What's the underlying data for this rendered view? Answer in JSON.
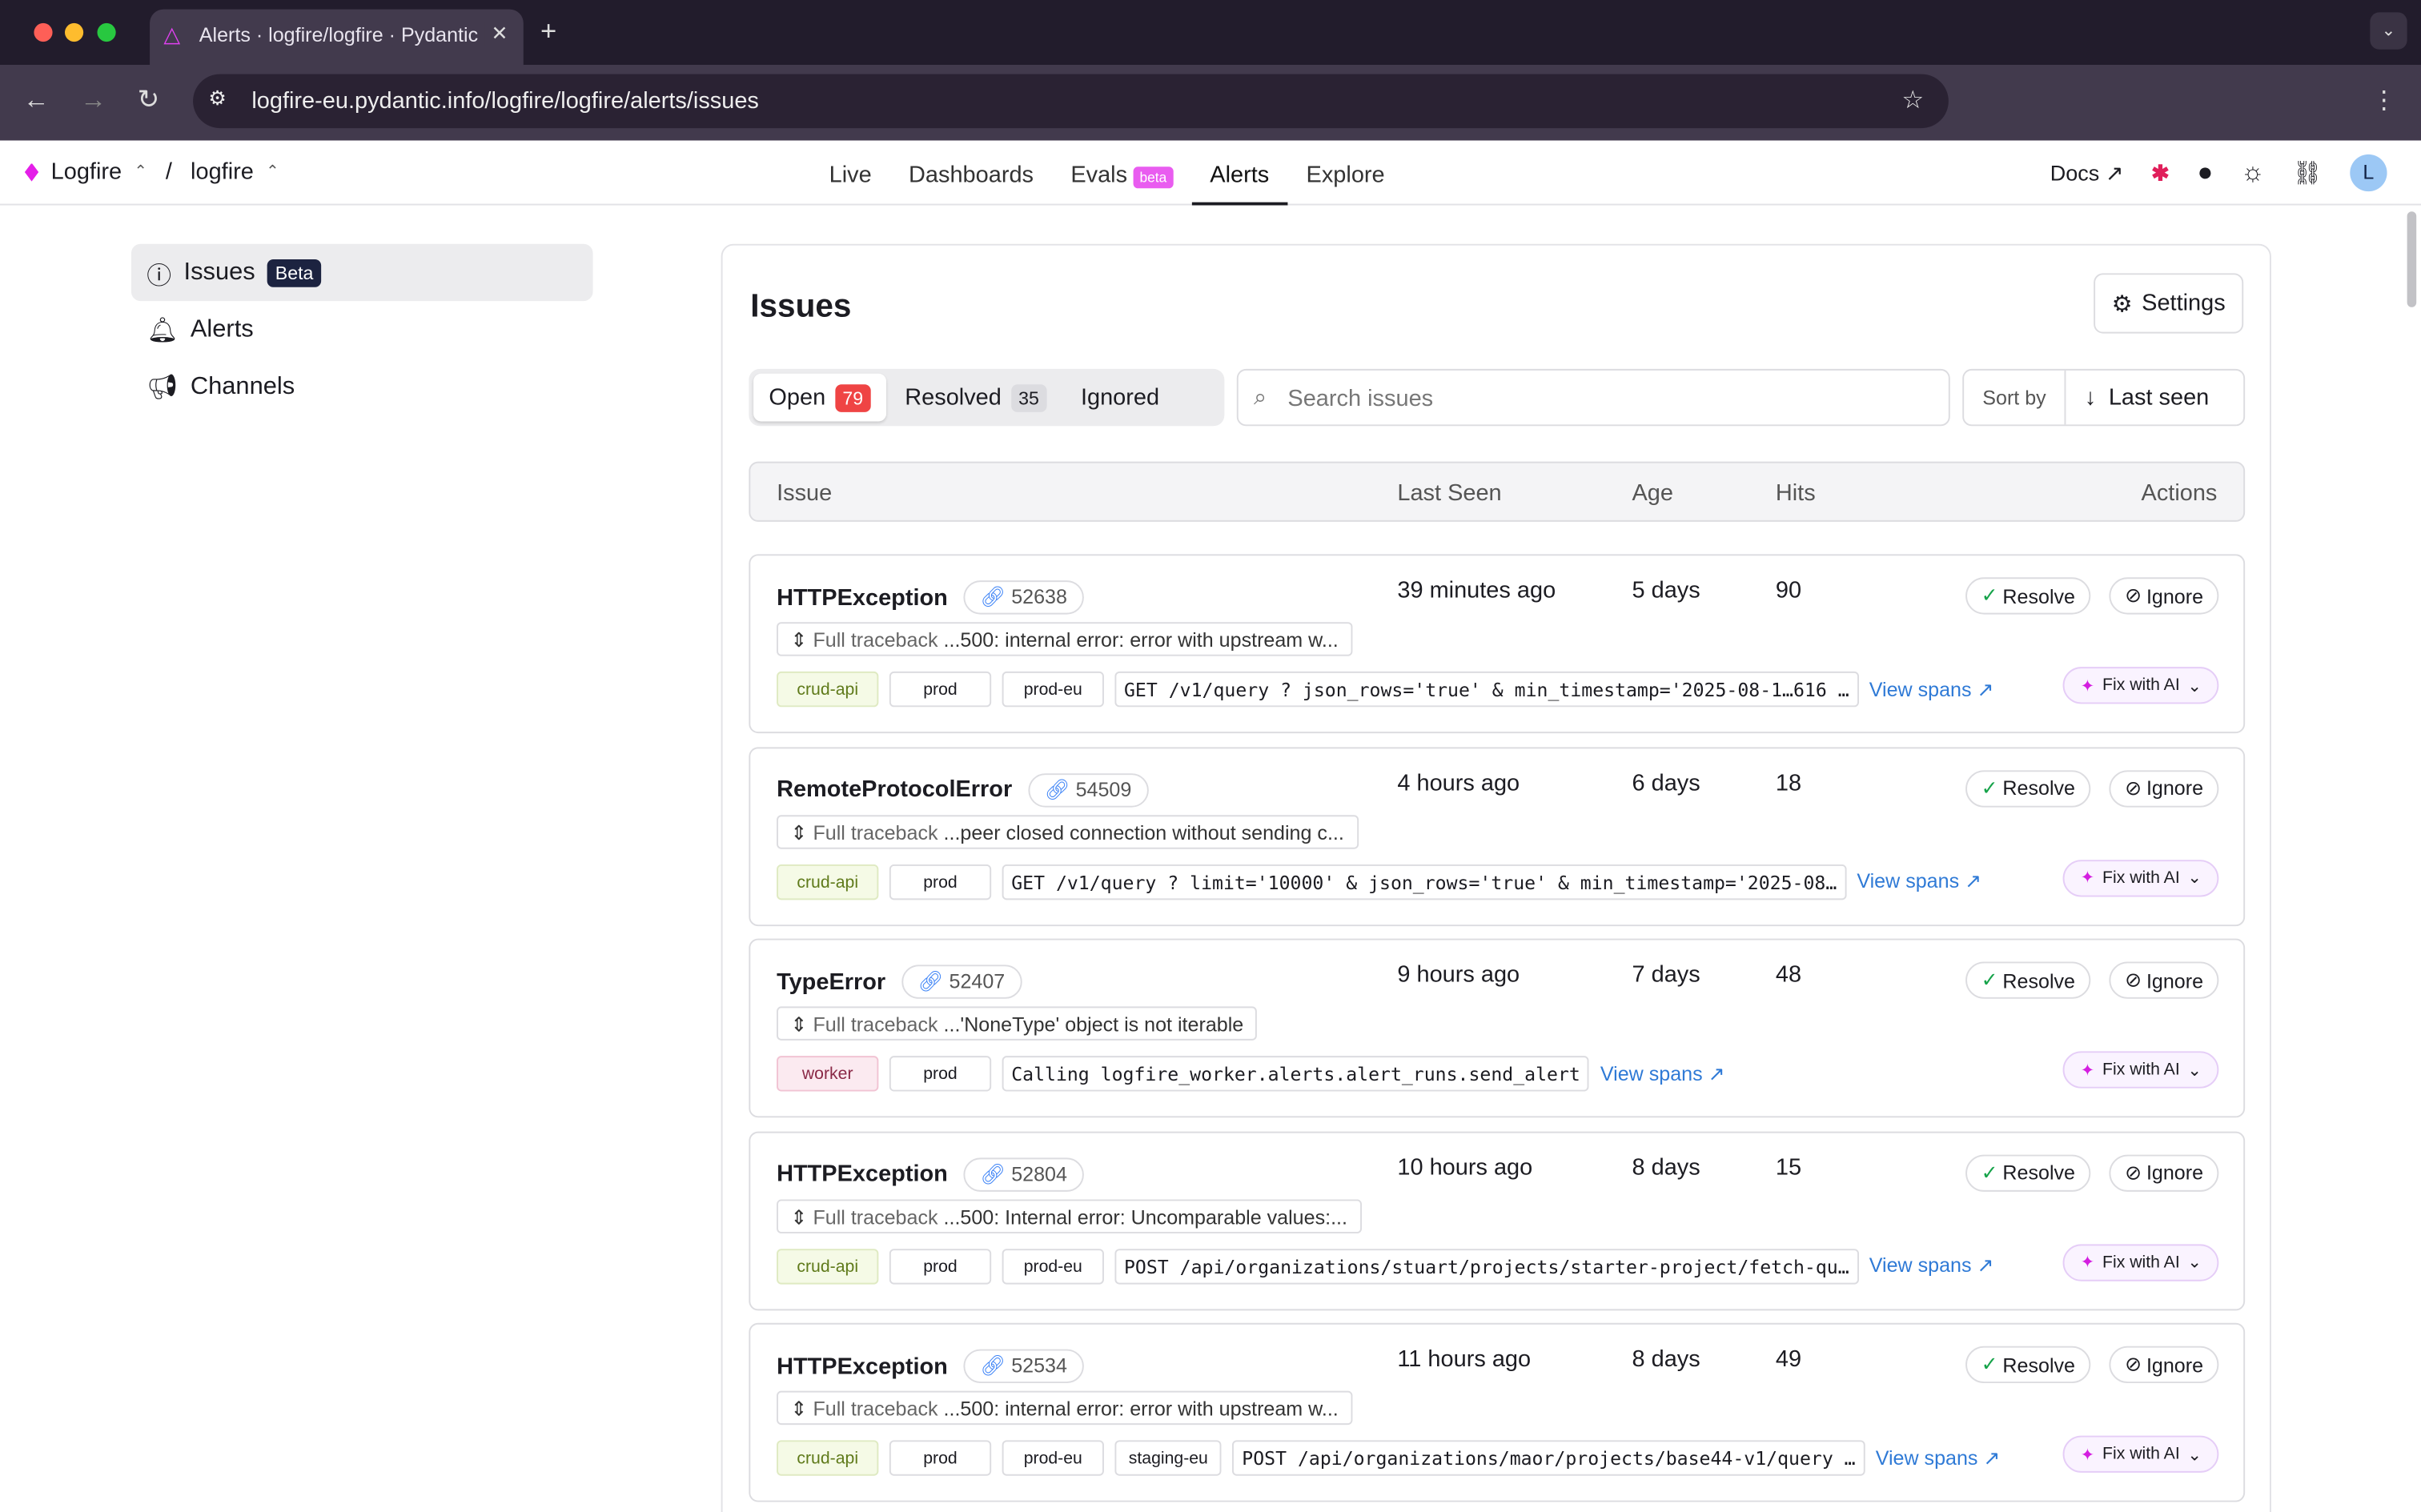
{
  "browser": {
    "tab_title": "Alerts · logfire/logfire · Pydantic",
    "url": "logfire-eu.pydantic.info/logfire/logfire/alerts/issues"
  },
  "appnav": {
    "org": "Logfire",
    "project": "logfire",
    "separator": "/",
    "items": [
      "Live",
      "Dashboards",
      "Evals",
      "Alerts",
      "Explore"
    ],
    "evals_badge": "beta",
    "active": "Alerts",
    "docs": "Docs",
    "avatar": "L"
  },
  "sidebar": {
    "items": [
      {
        "label": "Issues",
        "badge": "Beta"
      },
      {
        "label": "Alerts"
      },
      {
        "label": "Channels"
      }
    ]
  },
  "page": {
    "title": "Issues",
    "settings": "Settings",
    "filters": [
      {
        "label": "Open",
        "count": "79"
      },
      {
        "label": "Resolved",
        "count": "35"
      },
      {
        "label": "Ignored"
      }
    ],
    "search_placeholder": "Search issues",
    "sort_label": "Sort by",
    "sort_value": "Last seen",
    "columns": [
      "Issue",
      "Last Seen",
      "Age",
      "Hits",
      "Actions"
    ]
  },
  "actions": {
    "resolve": "Resolve",
    "ignore": "Ignore",
    "view_spans": "View spans",
    "fix": "Fix with AI",
    "traceback": "Full traceback"
  },
  "issues": [
    {
      "name": "HTTPException",
      "id": "52638",
      "traceback": "...500: internal error: error with upstream w...",
      "tags": [
        "crud-api",
        "prod",
        "prod-eu"
      ],
      "route": "GET /v1/query ? json_rows='true' & min_timestamp='2025-08-1…616 …",
      "last_seen": "39 minutes ago",
      "age": "5 days",
      "hits": "90",
      "resolvable": true
    },
    {
      "name": "RemoteProtocolError",
      "id": "54509",
      "traceback": "...peer closed connection without sending c...",
      "tags": [
        "crud-api",
        "prod"
      ],
      "route": "GET /v1/query ? limit='10000' & json_rows='true' & min_timestamp='2025-08…",
      "last_seen": "4 hours ago",
      "age": "6 days",
      "hits": "18",
      "resolvable": true
    },
    {
      "name": "TypeError",
      "id": "52407",
      "traceback": "...'NoneType' object is not iterable",
      "tags": [
        "worker",
        "prod"
      ],
      "route": "Calling logfire_worker.alerts.alert_runs.send_alert",
      "last_seen": "9 hours ago",
      "age": "7 days",
      "hits": "48",
      "resolvable": true
    },
    {
      "name": "HTTPException",
      "id": "52804",
      "traceback": "...500: Internal error: Uncomparable values:...",
      "tags": [
        "crud-api",
        "prod",
        "prod-eu"
      ],
      "route": "POST /api/organizations/stuart/projects/starter-project/fetch-qu…",
      "last_seen": "10 hours ago",
      "age": "8 days",
      "hits": "15",
      "resolvable": true
    },
    {
      "name": "HTTPException",
      "id": "52534",
      "traceback": "...500: internal error: error with upstream w...",
      "tags": [
        "crud-api",
        "prod",
        "prod-eu",
        "staging-eu"
      ],
      "route": "POST /api/organizations/maor/projects/base44-v1/query …",
      "last_seen": "11 hours ago",
      "age": "8 days",
      "hits": "49",
      "resolvable": true
    }
  ]
}
